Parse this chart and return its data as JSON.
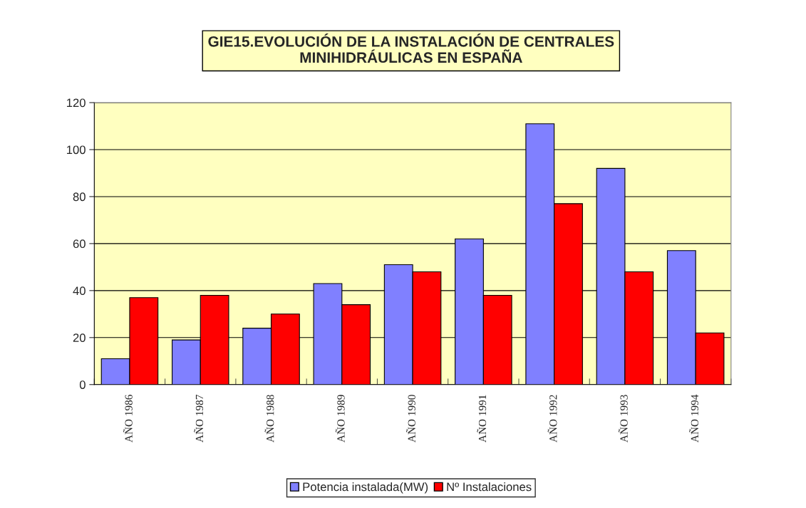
{
  "chart_data": {
    "type": "bar",
    "title": "GIE15.EVOLUCIÓN DE LA INSTALACIÓN DE CENTRALES\nMINIHIDRÁULICAS EN ESPAÑA",
    "categories": [
      "AÑO 1986",
      "AÑO 1987",
      "AÑO 1988",
      "AÑO 1989",
      "AÑO 1990",
      "AÑO 1991",
      "AÑO 1992",
      "AÑO 1993",
      "AÑO 1994"
    ],
    "series": [
      {
        "name": "Potencia instalada(MW)",
        "color": "#8080ff",
        "values": [
          11,
          19,
          24,
          43,
          51,
          62,
          111,
          92,
          57
        ]
      },
      {
        "name": "Nº Instalaciones",
        "color": "#ff0000",
        "values": [
          37,
          38,
          30,
          34,
          48,
          38,
          77,
          48,
          22
        ]
      }
    ],
    "ylim": [
      0,
      120
    ],
    "yticks": [
      0,
      20,
      40,
      60,
      80,
      100,
      120
    ],
    "grid": "y",
    "legend": "bottom"
  }
}
